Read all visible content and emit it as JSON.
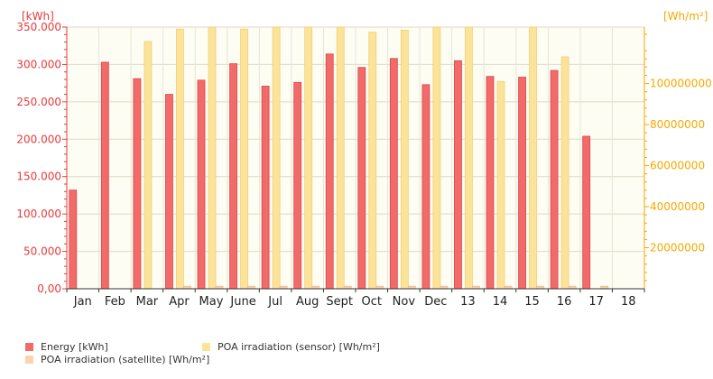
{
  "chart_data": {
    "type": "bar",
    "categories": [
      "Jan",
      "Feb",
      "Mar",
      "Apr",
      "May",
      "June",
      "Jul",
      "Aug",
      "Sept",
      "Oct",
      "Nov",
      "Dec",
      "13",
      "14",
      "15",
      "16",
      "17",
      "18"
    ],
    "y_left": {
      "label": "[kWh]",
      "range": [
        0,
        350000
      ],
      "ticks": [
        0,
        50000,
        100000,
        150000,
        200000,
        250000,
        300000,
        350000
      ],
      "tick_labels": [
        "0,00",
        "50.000",
        "100.000",
        "150.000",
        "200.000",
        "250.000",
        "300.000",
        "350.000"
      ],
      "color": "#e83a3a"
    },
    "y_right": {
      "label": "[Wh/m²]",
      "range": [
        0,
        127500000
      ],
      "ticks": [
        20000000,
        40000000,
        60000000,
        80000000,
        100000000
      ],
      "tick_labels": [
        "20000000",
        "40000000",
        "60000000",
        "80000000",
        "100000000"
      ],
      "color": "#f5a800"
    },
    "grid": true,
    "legend_position": "bottom-left",
    "series": [
      {
        "name": "Energy [kWh]",
        "axis": "left",
        "color": "#f26a6a",
        "values": [
          132000,
          303000,
          281000,
          260000,
          279000,
          301000,
          271000,
          276000,
          314000,
          296000,
          308000,
          273000,
          305000,
          284000,
          283000,
          292000,
          204000,
          null
        ]
      },
      {
        "name": "POA irradiation (sensor) [Wh/m²]",
        "axis": "right",
        "color": "#fbe39a",
        "values": [
          null,
          null,
          120500000,
          126500000,
          127500000,
          126500000,
          127500000,
          127500000,
          127500000,
          125000000,
          126000000,
          127500000,
          127500000,
          101000000,
          127500000,
          113000000,
          null,
          null
        ]
      },
      {
        "name": "POA irradiation (satellite) [Wh/m²]",
        "axis": "right",
        "color": "#fcd2b0",
        "values": [
          null,
          null,
          null,
          1200000,
          1200000,
          1200000,
          1200000,
          1200000,
          1200000,
          1200000,
          1200000,
          1200000,
          1200000,
          1200000,
          1200000,
          1200000,
          1200000,
          null
        ]
      }
    ]
  }
}
